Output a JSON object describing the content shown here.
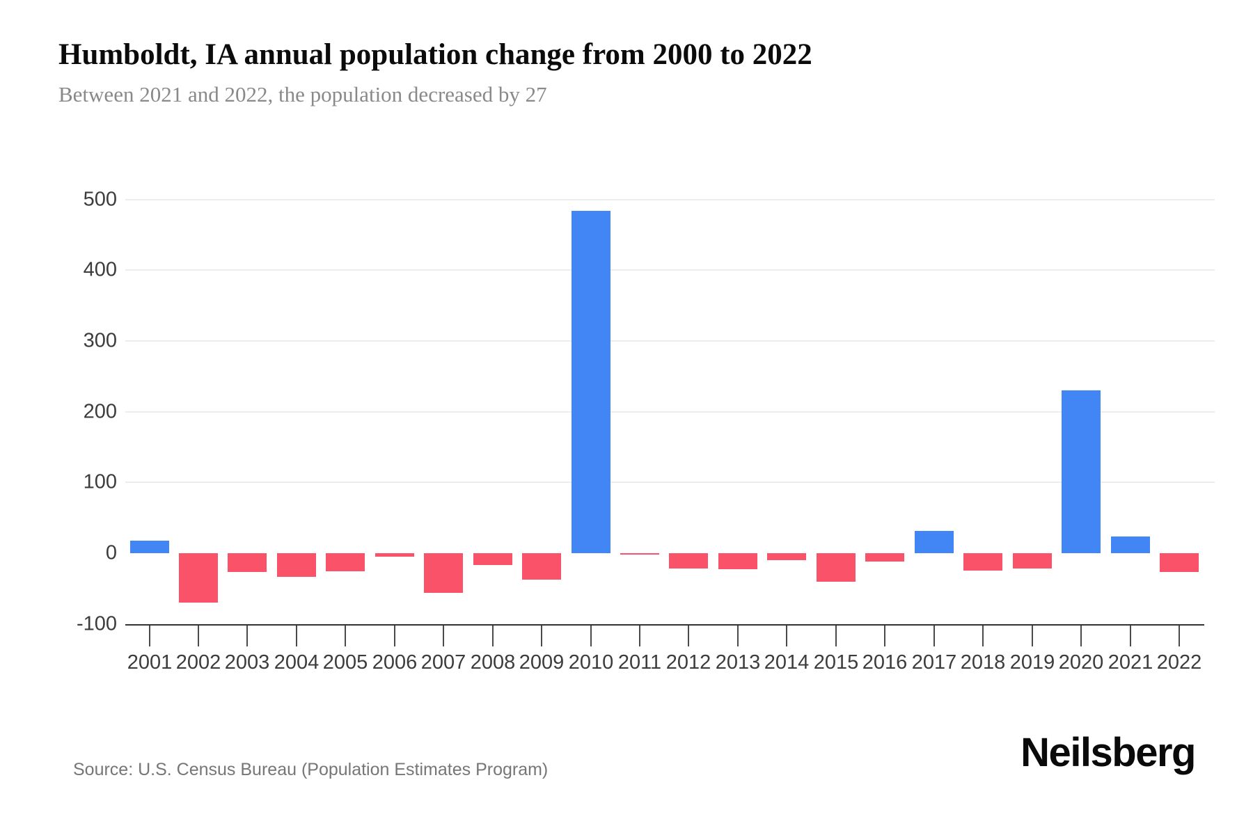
{
  "header": {
    "title": "Humboldt, IA annual population change from 2000 to 2022",
    "subtitle": "Between 2021 and 2022, the population decreased by 27"
  },
  "chart_data": {
    "type": "bar",
    "title": "Humboldt, IA annual population change from 2000 to 2022",
    "subtitle": "Between 2021 and 2022, the population decreased by 27",
    "categories": [
      "2001",
      "2002",
      "2003",
      "2004",
      "2005",
      "2006",
      "2007",
      "2008",
      "2009",
      "2010",
      "2011",
      "2012",
      "2013",
      "2014",
      "2015",
      "2016",
      "2017",
      "2018",
      "2019",
      "2020",
      "2021",
      "2022"
    ],
    "values": [
      18,
      -70,
      -27,
      -33,
      -26,
      -5,
      -56,
      -17,
      -37,
      484,
      -2,
      -22,
      -23,
      -10,
      -40,
      -12,
      31,
      -25,
      -22,
      230,
      24,
      -27
    ],
    "xlabel": "",
    "ylabel": "",
    "ylim": [
      -100,
      500
    ],
    "yticks": [
      -100,
      0,
      100,
      200,
      300,
      400,
      500
    ],
    "gridlines": "horizontal at 100..500, none at 0",
    "legend": "none",
    "positive_color": "#4285f4",
    "negative_color": "#fa5268",
    "axis_color": "#333333",
    "gridline_color": "#ededed",
    "tick_label_color": "#3c3c3c"
  },
  "footer": {
    "source": "Source: U.S. Census Bureau (Population Estimates Program)",
    "brand": "Neilsberg"
  }
}
